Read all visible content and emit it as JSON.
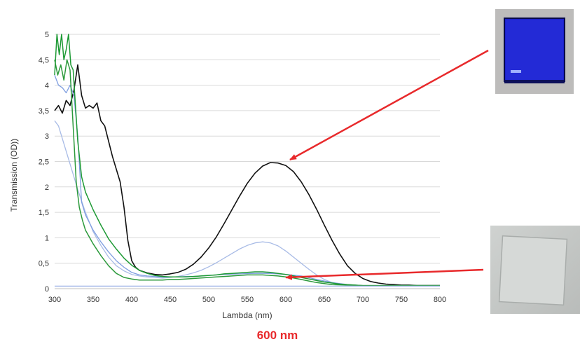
{
  "chart_data": {
    "type": "line",
    "xlabel": "Lambda (nm)",
    "ylabel": "Transmission (OD))",
    "xlim": [
      300,
      800
    ],
    "ylim": [
      0,
      5
    ],
    "x_ticks": [
      "300",
      "350",
      "400",
      "450",
      "500",
      "550",
      "600",
      "650",
      "700",
      "750",
      "800"
    ],
    "y_ticks": [
      "0",
      "0,5",
      "1",
      "1,5",
      "2",
      "2,5",
      "3",
      "3,5",
      "4",
      "4,5",
      "5"
    ],
    "grid": "horizontal",
    "caption": "600 nm",
    "series": [
      {
        "color": "#111111",
        "width": 1.6,
        "x": [
          300,
          305,
          310,
          315,
          320,
          325,
          330,
          335,
          340,
          345,
          350,
          355,
          360,
          365,
          370,
          375,
          380,
          385,
          390,
          395,
          400,
          405,
          410,
          420,
          430,
          440,
          450,
          460,
          470,
          480,
          490,
          500,
          510,
          520,
          530,
          540,
          550,
          560,
          570,
          580,
          590,
          600,
          610,
          620,
          630,
          640,
          650,
          660,
          670,
          680,
          690,
          700,
          710,
          720,
          730,
          740,
          750,
          760,
          770,
          780,
          790,
          800
        ],
        "y": [
          3.5,
          3.6,
          3.45,
          3.7,
          3.6,
          3.9,
          4.4,
          3.8,
          3.55,
          3.6,
          3.55,
          3.65,
          3.3,
          3.2,
          2.9,
          2.6,
          2.35,
          2.1,
          1.6,
          0.95,
          0.55,
          0.42,
          0.36,
          0.31,
          0.28,
          0.27,
          0.29,
          0.32,
          0.38,
          0.48,
          0.62,
          0.8,
          1.02,
          1.28,
          1.55,
          1.82,
          2.07,
          2.27,
          2.41,
          2.48,
          2.47,
          2.42,
          2.3,
          2.1,
          1.85,
          1.56,
          1.25,
          0.95,
          0.68,
          0.45,
          0.3,
          0.2,
          0.14,
          0.11,
          0.09,
          0.08,
          0.07,
          0.07,
          0.06,
          0.06,
          0.06,
          0.06
        ]
      },
      {
        "color": "#a8bbe6",
        "width": 1.3,
        "x": [
          300,
          305,
          310,
          320,
          330,
          340,
          350,
          360,
          370,
          380,
          390,
          400,
          410,
          420,
          430,
          440,
          450,
          460,
          470,
          480,
          490,
          500,
          510,
          520,
          530,
          540,
          550,
          560,
          570,
          580,
          590,
          600,
          610,
          620,
          630,
          640,
          650,
          660,
          670,
          680,
          690,
          700,
          720,
          740,
          760,
          780,
          800
        ],
        "y": [
          3.3,
          3.2,
          2.95,
          2.45,
          1.95,
          1.5,
          1.12,
          0.85,
          0.62,
          0.45,
          0.35,
          0.28,
          0.25,
          0.23,
          0.22,
          0.21,
          0.22,
          0.24,
          0.27,
          0.31,
          0.36,
          0.43,
          0.51,
          0.6,
          0.69,
          0.78,
          0.85,
          0.9,
          0.92,
          0.9,
          0.84,
          0.74,
          0.62,
          0.5,
          0.38,
          0.27,
          0.18,
          0.12,
          0.08,
          0.06,
          0.05,
          0.05,
          0.05,
          0.05,
          0.05,
          0.05,
          0.05
        ]
      },
      {
        "color": "#7f9ee0",
        "width": 1.3,
        "x": [
          300,
          305,
          310,
          315,
          320,
          325,
          330,
          335,
          340,
          350,
          360,
          370,
          380,
          390,
          400,
          410,
          420,
          430,
          440,
          450,
          460,
          470,
          480,
          490,
          500,
          520,
          540,
          560,
          580,
          600,
          620,
          640,
          660,
          680,
          700,
          720,
          740,
          760,
          780,
          800
        ],
        "y": [
          4.2,
          4.0,
          3.95,
          3.85,
          4.0,
          3.8,
          3.0,
          1.7,
          1.45,
          1.15,
          0.92,
          0.72,
          0.55,
          0.42,
          0.32,
          0.27,
          0.25,
          0.24,
          0.23,
          0.23,
          0.23,
          0.24,
          0.24,
          0.25,
          0.26,
          0.28,
          0.29,
          0.3,
          0.3,
          0.28,
          0.25,
          0.18,
          0.12,
          0.08,
          0.06,
          0.05,
          0.05,
          0.05,
          0.05,
          0.05
        ]
      },
      {
        "color": "#1e9a35",
        "width": 1.5,
        "x": [
          300,
          303,
          306,
          309,
          312,
          315,
          318,
          321,
          324,
          327,
          330,
          335,
          340,
          350,
          360,
          370,
          380,
          390,
          400,
          410,
          420,
          430,
          440,
          450,
          460,
          470,
          480,
          490,
          500,
          510,
          520,
          530,
          540,
          550,
          560,
          570,
          580,
          590,
          600,
          610,
          620,
          630,
          640,
          650,
          660,
          670,
          680,
          690,
          700,
          720,
          740,
          760,
          780,
          800
        ],
        "y": [
          4.2,
          5.0,
          4.6,
          5.0,
          4.5,
          4.7,
          5.0,
          4.4,
          4.3,
          3.6,
          2.9,
          2.2,
          1.9,
          1.55,
          1.25,
          0.98,
          0.78,
          0.6,
          0.46,
          0.36,
          0.3,
          0.26,
          0.24,
          0.23,
          0.23,
          0.23,
          0.24,
          0.25,
          0.26,
          0.27,
          0.29,
          0.3,
          0.31,
          0.32,
          0.33,
          0.33,
          0.32,
          0.3,
          0.28,
          0.25,
          0.22,
          0.19,
          0.16,
          0.13,
          0.11,
          0.09,
          0.08,
          0.07,
          0.06,
          0.06,
          0.06,
          0.06,
          0.06,
          0.06
        ]
      },
      {
        "color": "#2c9a3c",
        "width": 1.5,
        "x": [
          300,
          304,
          308,
          312,
          316,
          320,
          324,
          328,
          332,
          336,
          340,
          350,
          360,
          370,
          380,
          390,
          400,
          410,
          420,
          430,
          440,
          450,
          460,
          470,
          480,
          490,
          500,
          510,
          520,
          530,
          540,
          550,
          560,
          570,
          580,
          590,
          600,
          610,
          620,
          630,
          640,
          650,
          660,
          680,
          700,
          720,
          740,
          760,
          780,
          800
        ],
        "y": [
          4.5,
          4.2,
          4.4,
          4.1,
          4.5,
          4.3,
          3.2,
          2.1,
          1.6,
          1.35,
          1.15,
          0.88,
          0.65,
          0.45,
          0.3,
          0.22,
          0.19,
          0.17,
          0.17,
          0.17,
          0.17,
          0.18,
          0.18,
          0.19,
          0.2,
          0.21,
          0.22,
          0.23,
          0.24,
          0.25,
          0.26,
          0.27,
          0.27,
          0.27,
          0.26,
          0.25,
          0.23,
          0.21,
          0.18,
          0.15,
          0.12,
          0.1,
          0.08,
          0.07,
          0.06,
          0.06,
          0.06,
          0.06,
          0.06,
          0.06
        ]
      },
      {
        "color": "#9ab0e6",
        "width": 1.2,
        "x": [
          300,
          350,
          400,
          450,
          500,
          550,
          600,
          650,
          700,
          750,
          800
        ],
        "y": [
          0.05,
          0.05,
          0.05,
          0.05,
          0.05,
          0.05,
          0.05,
          0.05,
          0.05,
          0.05,
          0.05
        ]
      }
    ]
  }
}
